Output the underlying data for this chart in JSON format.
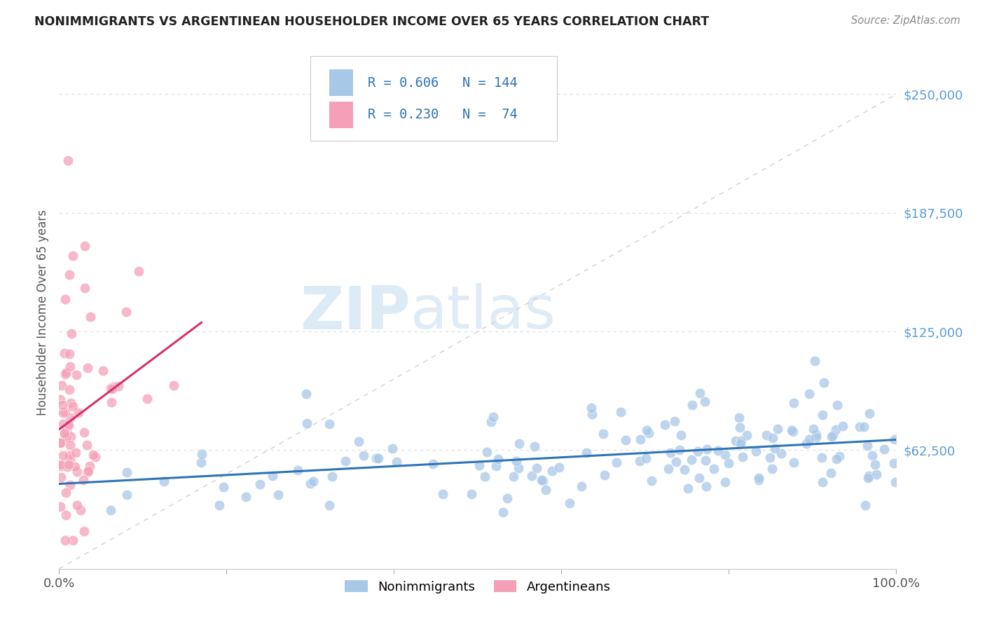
{
  "title": "NONIMMIGRANTS VS ARGENTINEAN HOUSEHOLDER INCOME OVER 65 YEARS CORRELATION CHART",
  "source": "Source: ZipAtlas.com",
  "ylabel": "Householder Income Over 65 years",
  "yticks": [
    0,
    62500,
    125000,
    187500,
    250000
  ],
  "ytick_labels": [
    "",
    "$62,500",
    "$125,000",
    "$187,500",
    "$250,000"
  ],
  "legend_nonimm": "Nonimmigrants",
  "legend_arg": "Argentineans",
  "R_nonimm": 0.606,
  "N_nonimm": 144,
  "R_arg": 0.23,
  "N_arg": 74,
  "color_nonimm": "#a8c8e8",
  "color_arg": "#f5a0b8",
  "color_nonimm_line": "#2e75b6",
  "color_arg_line": "#d63070",
  "color_diag_line": "#cccccc",
  "color_title": "#222222",
  "color_source": "#888888",
  "color_ytick": "#5b9bd5",
  "watermark_zip": "ZIP",
  "watermark_atlas": "atlas",
  "background_color": "#ffffff",
  "xlim": [
    0.0,
    1.0
  ],
  "ylim": [
    0,
    270000
  ],
  "seed": 42
}
